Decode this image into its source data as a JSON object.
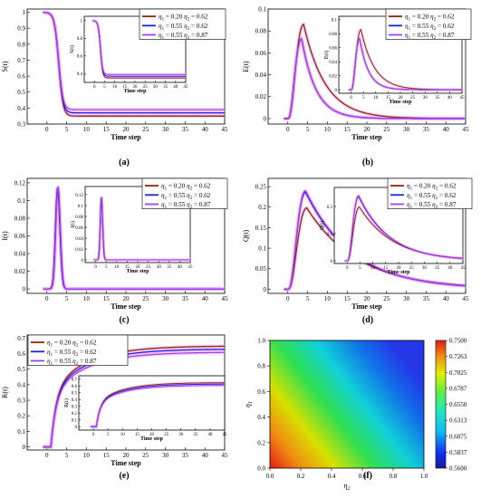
{
  "figure": {
    "panels": [
      "(a)",
      "(b)",
      "(c)",
      "(d)",
      "(e)",
      "(f)"
    ]
  },
  "legend": {
    "entries": [
      {
        "eta1": "0.20",
        "eta2": "0.62",
        "color": "#8b2a10"
      },
      {
        "eta1": "0.55",
        "eta2": "0.62",
        "color": "#2020e0"
      },
      {
        "eta1": "0.55",
        "eta2": "0.87",
        "color": "#a040f0"
      }
    ]
  },
  "colors": {
    "series_1": "#8b2a10",
    "series_2": "#2020e0",
    "series_3": "#a040f0",
    "glow": "#f0a8f0"
  },
  "chart_data": [
    {
      "panel": "(a)",
      "type": "line",
      "xlabel": "Time step",
      "ylabel": "S(t)",
      "xlim": [
        -5,
        45
      ],
      "ylim": [
        0.3,
        1.02
      ],
      "xticks": [
        0,
        5,
        10,
        15,
        20,
        25,
        30,
        35,
        40,
        45
      ],
      "yticks": [
        0.3,
        0.4,
        0.5,
        0.6,
        0.7,
        0.8,
        0.9,
        1.0
      ],
      "series_plateaus": [
        0.35,
        0.37,
        0.39
      ],
      "inset": {
        "xlabel": "Time step",
        "ylabel": "S(t)",
        "xlim": [
          -5,
          45
        ],
        "ylim": [
          0.3,
          1.05
        ],
        "xticks": [
          0,
          5,
          10,
          15,
          20,
          25,
          30,
          35,
          40,
          45
        ],
        "yticks": [
          0.4,
          0.6,
          0.8,
          1.0
        ]
      }
    },
    {
      "panel": "(b)",
      "type": "line",
      "xlabel": "Time step",
      "ylabel": "E(t)",
      "xlim": [
        -5,
        45
      ],
      "ylim": [
        -0.005,
        0.1
      ],
      "xticks": [
        0,
        5,
        10,
        15,
        20,
        25,
        30,
        35,
        40,
        45
      ],
      "yticks": [
        0.0,
        0.02,
        0.04,
        0.06,
        0.08,
        0.1
      ],
      "series_peaks": [
        0.086,
        0.073,
        0.073
      ],
      "inset": {
        "xlabel": "Time step",
        "ylabel": "E(t)",
        "xlim": [
          -5,
          45
        ],
        "ylim": [
          -0.005,
          0.105
        ],
        "xticks": [
          0,
          5,
          10,
          15,
          20,
          25,
          30,
          35,
          40,
          45
        ],
        "yticks": [
          0.0,
          0.02,
          0.04,
          0.06,
          0.08,
          0.1
        ]
      }
    },
    {
      "panel": "(c)",
      "type": "line",
      "xlabel": "Time step",
      "ylabel": "I(t)",
      "xlim": [
        -5,
        45
      ],
      "ylim": [
        -0.005,
        0.125
      ],
      "xticks": [
        0,
        5,
        10,
        15,
        20,
        25,
        30,
        35,
        40,
        45
      ],
      "yticks": [
        0.0,
        0.02,
        0.04,
        0.06,
        0.08,
        0.1,
        0.12
      ],
      "series_peaks": [
        0.113,
        0.115,
        0.116
      ],
      "inset": {
        "xlabel": "Time step",
        "ylabel": "I(t)",
        "xlim": [
          -5,
          45
        ],
        "ylim": [
          -0.005,
          0.135
        ],
        "xticks": [
          0,
          5,
          10,
          15,
          20,
          25,
          30,
          35,
          40,
          45
        ],
        "yticks": [
          0.0,
          0.02,
          0.04,
          0.06,
          0.08,
          0.1,
          0.12
        ]
      }
    },
    {
      "panel": "(d)",
      "type": "line",
      "xlabel": "Time step",
      "ylabel": "Q(t)",
      "xlim": [
        -5,
        45
      ],
      "ylim": [
        -0.01,
        0.27
      ],
      "xticks": [
        0,
        5,
        10,
        15,
        20,
        25,
        30,
        35,
        40,
        45
      ],
      "yticks": [
        0.0,
        0.05,
        0.1,
        0.15,
        0.2,
        0.25
      ],
      "series_peaks": [
        0.198,
        0.236,
        0.24
      ],
      "inset": {
        "xlabel": "Time step",
        "ylabel": "Q(t)",
        "xlim": [
          -5,
          45
        ],
        "ylim": [
          -0.01,
          0.27
        ],
        "xticks": [
          0,
          5,
          10,
          15,
          20,
          25,
          30,
          35,
          40,
          45
        ],
        "yticks": [
          0.0,
          0.1,
          0.2
        ]
      }
    },
    {
      "panel": "(e)",
      "type": "line",
      "xlabel": "Time step",
      "ylabel": "R(t)",
      "xlim": [
        -5,
        45
      ],
      "ylim": [
        -0.02,
        0.72
      ],
      "xticks": [
        0,
        5,
        10,
        15,
        20,
        25,
        30,
        35,
        40,
        45
      ],
      "yticks": [
        0.0,
        0.1,
        0.2,
        0.3,
        0.4,
        0.5,
        0.6,
        0.7
      ],
      "series_plateaus": [
        0.65,
        0.63,
        0.61
      ],
      "inset": {
        "xlabel": "Time step",
        "ylabel": "R(t)",
        "xlim": [
          -5,
          45
        ],
        "ylim": [
          -0.05,
          0.75
        ],
        "xticks": [
          0,
          5,
          10,
          15,
          20,
          25,
          30,
          35,
          40,
          45
        ],
        "yticks": [
          0.0,
          0.1,
          0.2,
          0.3,
          0.4,
          0.5,
          0.6,
          0.7
        ]
      }
    },
    {
      "panel": "(f)",
      "type": "heatmap",
      "xlabel": "η2",
      "ylabel": "η1",
      "xlim": [
        0.0,
        1.0
      ],
      "ylim": [
        0.0,
        1.0
      ],
      "xticks": [
        "0.0",
        "0.2",
        "0.4",
        "0.6",
        "0.8",
        "1.0"
      ],
      "yticks": [
        "0.0",
        "0.2",
        "0.4",
        "0.6",
        "0.8",
        "1.0"
      ],
      "colorbar": {
        "ticks": [
          "0.5600",
          "0.5837",
          "0.6075",
          "0.6313",
          "0.6550",
          "0.6787",
          "0.7025",
          "0.7263",
          "0.7500"
        ],
        "min": 0.56,
        "max": 0.75
      }
    }
  ]
}
